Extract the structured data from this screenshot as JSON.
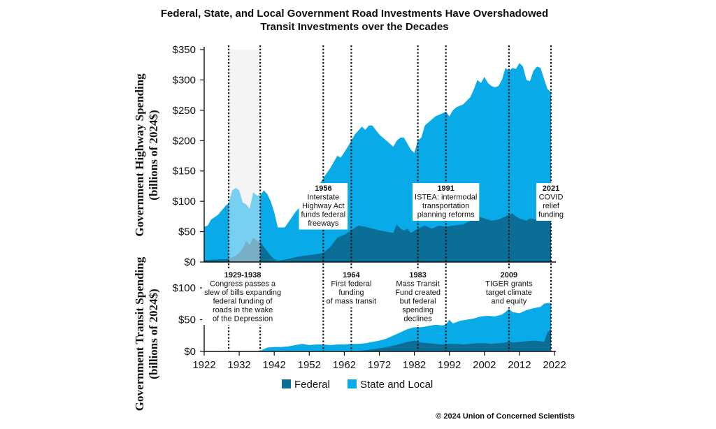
{
  "chart_data": {
    "type": "area",
    "title": "Federal, State, and Local Government Road Investments Have Overshadowed Transit Investments over the Decades",
    "title_lines": [
      "Federal, State, and Local Government Road Investments Have Overshadowed",
      "Transit Investments over the Decades"
    ],
    "copyright": "© 2024 Union of Concerned Scientists",
    "legend": [
      {
        "name": "Federal",
        "color": "#0a6e96"
      },
      {
        "name": "State and Local",
        "color": "#09aae8"
      }
    ],
    "colors": {
      "federal": "#0a6e96",
      "state_local": "#09aae8",
      "shade": "#ececec",
      "note_bg": "#ffffff"
    },
    "x_ticks": [
      1922,
      1932,
      1942,
      1952,
      1962,
      1972,
      1982,
      1992,
      2002,
      2012,
      2022
    ],
    "xlim": [
      1922,
      2022
    ],
    "panels": [
      {
        "id": "highway",
        "ylabel_lines": [
          "Government Highway Spending",
          "(billions of 2024$)"
        ],
        "ylim": [
          0,
          350
        ],
        "y_ticks": [
          0,
          50,
          100,
          150,
          200,
          250,
          300,
          350
        ],
        "y_tick_labels": [
          "$0",
          "$50",
          "$100",
          "$150",
          "$200",
          "$250",
          "$300",
          "$350"
        ],
        "total": [
          [
            1922,
            58
          ],
          [
            1923,
            60
          ],
          [
            1924,
            70
          ],
          [
            1926,
            78
          ],
          [
            1928,
            92
          ],
          [
            1929,
            97
          ],
          [
            1930,
            118
          ],
          [
            1931,
            122
          ],
          [
            1932,
            118
          ],
          [
            1933,
            98
          ],
          [
            1934,
            95
          ],
          [
            1935,
            88
          ],
          [
            1936,
            115
          ],
          [
            1937,
            110
          ],
          [
            1938,
            110
          ],
          [
            1939,
            118
          ],
          [
            1940,
            112
          ],
          [
            1941,
            100
          ],
          [
            1942,
            82
          ],
          [
            1943,
            57
          ],
          [
            1945,
            57
          ],
          [
            1946,
            65
          ],
          [
            1948,
            82
          ],
          [
            1950,
            95
          ],
          [
            1952,
            105
          ],
          [
            1954,
            120
          ],
          [
            1956,
            138
          ],
          [
            1958,
            155
          ],
          [
            1960,
            175
          ],
          [
            1961,
            172
          ],
          [
            1963,
            190
          ],
          [
            1965,
            210
          ],
          [
            1967,
            223
          ],
          [
            1968,
            218
          ],
          [
            1969,
            225
          ],
          [
            1970,
            225
          ],
          [
            1972,
            210
          ],
          [
            1974,
            200
          ],
          [
            1976,
            190
          ],
          [
            1977,
            200
          ],
          [
            1978,
            205
          ],
          [
            1979,
            205
          ],
          [
            1981,
            185
          ],
          [
            1982,
            180
          ],
          [
            1983,
            200
          ],
          [
            1984,
            205
          ],
          [
            1985,
            225
          ],
          [
            1986,
            230
          ],
          [
            1988,
            240
          ],
          [
            1990,
            245
          ],
          [
            1991,
            248
          ],
          [
            1992,
            240
          ],
          [
            1993,
            250
          ],
          [
            1994,
            255
          ],
          [
            1996,
            260
          ],
          [
            1998,
            272
          ],
          [
            1999,
            285
          ],
          [
            2000,
            300
          ],
          [
            2001,
            295
          ],
          [
            2002,
            305
          ],
          [
            2003,
            295
          ],
          [
            2004,
            290
          ],
          [
            2005,
            288
          ],
          [
            2006,
            290
          ],
          [
            2007,
            300
          ],
          [
            2008,
            320
          ],
          [
            2009,
            315
          ],
          [
            2010,
            320
          ],
          [
            2011,
            318
          ],
          [
            2012,
            328
          ],
          [
            2013,
            322
          ],
          [
            2014,
            300
          ],
          [
            2015,
            298
          ],
          [
            2016,
            315
          ],
          [
            2017,
            322
          ],
          [
            2018,
            320
          ],
          [
            2019,
            302
          ],
          [
            2020,
            285
          ],
          [
            2021,
            280
          ]
        ],
        "federal": [
          [
            1922,
            3
          ],
          [
            1925,
            4
          ],
          [
            1929,
            5
          ],
          [
            1930,
            8
          ],
          [
            1931,
            10
          ],
          [
            1932,
            15
          ],
          [
            1933,
            22
          ],
          [
            1934,
            35
          ],
          [
            1935,
            28
          ],
          [
            1936,
            40
          ],
          [
            1937,
            35
          ],
          [
            1938,
            33
          ],
          [
            1939,
            25
          ],
          [
            1940,
            18
          ],
          [
            1941,
            10
          ],
          [
            1942,
            5
          ],
          [
            1943,
            2
          ],
          [
            1944,
            3
          ],
          [
            1946,
            5
          ],
          [
            1948,
            8
          ],
          [
            1950,
            10
          ],
          [
            1953,
            12
          ],
          [
            1956,
            15
          ],
          [
            1958,
            25
          ],
          [
            1960,
            40
          ],
          [
            1962,
            45
          ],
          [
            1964,
            52
          ],
          [
            1966,
            60
          ],
          [
            1968,
            58
          ],
          [
            1970,
            55
          ],
          [
            1972,
            52
          ],
          [
            1974,
            50
          ],
          [
            1976,
            48
          ],
          [
            1977,
            62
          ],
          [
            1978,
            55
          ],
          [
            1979,
            52
          ],
          [
            1980,
            55
          ],
          [
            1981,
            48
          ],
          [
            1983,
            55
          ],
          [
            1985,
            60
          ],
          [
            1987,
            55
          ],
          [
            1989,
            60
          ],
          [
            1991,
            58
          ],
          [
            1993,
            60
          ],
          [
            1996,
            62
          ],
          [
            1998,
            68
          ],
          [
            2000,
            75
          ],
          [
            2002,
            72
          ],
          [
            2004,
            68
          ],
          [
            2006,
            70
          ],
          [
            2008,
            75
          ],
          [
            2009,
            78
          ],
          [
            2010,
            80
          ],
          [
            2011,
            75
          ],
          [
            2012,
            72
          ],
          [
            2013,
            70
          ],
          [
            2014,
            68
          ],
          [
            2015,
            72
          ],
          [
            2017,
            70
          ],
          [
            2018,
            72
          ],
          [
            2020,
            75
          ],
          [
            2021,
            78
          ]
        ],
        "annotations": [
          {
            "year": 1956,
            "lines": [
              "1956",
              "Interstate",
              "Highway Act",
              "funds federal",
              "freeways"
            ]
          },
          {
            "year": 1991,
            "lines": [
              "1991",
              "ISTEA: intermodal",
              "transportation",
              "planning reforms"
            ]
          },
          {
            "year": 2021,
            "lines": [
              "2021",
              "COVID",
              "relief",
              "funding"
            ]
          }
        ]
      },
      {
        "id": "transit",
        "ylabel_lines": [
          "Government Transit Spending",
          "(billions of 2024$)"
        ],
        "ylim": [
          0,
          100
        ],
        "y_ticks": [
          0,
          50,
          100
        ],
        "y_tick_labels": [
          "$0",
          "$50",
          "$100"
        ],
        "total": [
          [
            1922,
            0.5
          ],
          [
            1930,
            0.8
          ],
          [
            1938,
            1
          ],
          [
            1940,
            6
          ],
          [
            1942,
            7
          ],
          [
            1944,
            7
          ],
          [
            1946,
            8
          ],
          [
            1948,
            10
          ],
          [
            1950,
            12
          ],
          [
            1952,
            10
          ],
          [
            1954,
            11
          ],
          [
            1956,
            11
          ],
          [
            1958,
            10
          ],
          [
            1960,
            11
          ],
          [
            1962,
            11
          ],
          [
            1964,
            12
          ],
          [
            1966,
            12
          ],
          [
            1968,
            13
          ],
          [
            1970,
            15
          ],
          [
            1972,
            17
          ],
          [
            1974,
            20
          ],
          [
            1976,
            25
          ],
          [
            1978,
            30
          ],
          [
            1980,
            35
          ],
          [
            1982,
            38
          ],
          [
            1984,
            38
          ],
          [
            1986,
            40
          ],
          [
            1988,
            42
          ],
          [
            1990,
            41
          ],
          [
            1991,
            42
          ],
          [
            1992,
            50
          ],
          [
            1993,
            44
          ],
          [
            1995,
            48
          ],
          [
            1997,
            50
          ],
          [
            1999,
            52
          ],
          [
            2001,
            55
          ],
          [
            2003,
            56
          ],
          [
            2005,
            55
          ],
          [
            2007,
            58
          ],
          [
            2008,
            62
          ],
          [
            2009,
            67
          ],
          [
            2010,
            62
          ],
          [
            2012,
            60
          ],
          [
            2014,
            65
          ],
          [
            2016,
            68
          ],
          [
            2018,
            70
          ],
          [
            2019,
            75
          ],
          [
            2020,
            76
          ],
          [
            2021,
            76
          ]
        ],
        "federal": [
          [
            1922,
            0
          ],
          [
            1964,
            0
          ],
          [
            1968,
            2
          ],
          [
            1970,
            3
          ],
          [
            1972,
            5
          ],
          [
            1974,
            7
          ],
          [
            1976,
            9
          ],
          [
            1978,
            12
          ],
          [
            1980,
            15
          ],
          [
            1982,
            17
          ],
          [
            1984,
            14
          ],
          [
            1986,
            13
          ],
          [
            1988,
            12
          ],
          [
            1990,
            11
          ],
          [
            1992,
            12
          ],
          [
            1994,
            12
          ],
          [
            1996,
            11
          ],
          [
            1998,
            12
          ],
          [
            2000,
            13
          ],
          [
            2002,
            13
          ],
          [
            2004,
            12
          ],
          [
            2006,
            13
          ],
          [
            2008,
            14
          ],
          [
            2009,
            16
          ],
          [
            2010,
            14
          ],
          [
            2012,
            15
          ],
          [
            2014,
            16
          ],
          [
            2016,
            17
          ],
          [
            2018,
            16
          ],
          [
            2019,
            15
          ],
          [
            2020,
            30
          ],
          [
            2021,
            35
          ]
        ],
        "annotations": [
          {
            "year": 1933,
            "lines": [
              "1929-1938",
              "Congress passes a",
              "slew of bills expanding",
              "federal funding of",
              "roads in the wake",
              "of the Depression"
            ]
          },
          {
            "year": 1964,
            "lines": [
              "1964",
              "First federal",
              "funding",
              "of mass transit"
            ]
          },
          {
            "year": 1983,
            "lines": [
              "1983",
              "Mass Transit",
              "Fund created",
              "but federal",
              "spending",
              "declines"
            ]
          },
          {
            "year": 2009,
            "lines": [
              "2009",
              "TIGER grants",
              "target climate",
              "and equity"
            ]
          }
        ]
      }
    ],
    "milestone_years": [
      1929,
      1938,
      1956,
      1964,
      1983,
      1991,
      2009,
      2021
    ],
    "shaded_period": [
      1929,
      1938
    ]
  }
}
